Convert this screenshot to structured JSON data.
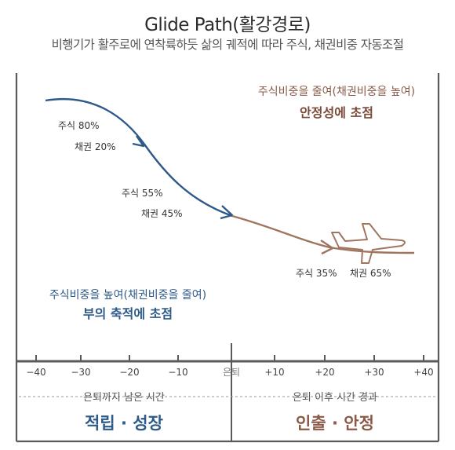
{
  "header": {
    "title": "Glide Path(활강경로)",
    "subtitle": "비행기가 활주로에 연착륙하듯 삶의 궤적에 따라 주식, 채권비중 자동조절"
  },
  "annotations": {
    "top_right_line1": "주식비중을 줄여(채권비중을 높여)",
    "top_right_line2": "안정성에 초점",
    "bottom_left_line1": "주식비중을 높여(채권비중을 줄여)",
    "bottom_left_line2": "부의 축적에 초점"
  },
  "points": {
    "p1_stock": "주식 80%",
    "p1_bond": "채권 20%",
    "p2_stock": "주식 55%",
    "p2_bond": "채권 45%",
    "p3_stock": "주식 35%",
    "p3_bond": "채권 65%"
  },
  "axis": {
    "ticks": [
      "−40",
      "−30",
      "−20",
      "−10",
      "은퇴",
      "+10",
      "+20",
      "+30",
      "+40"
    ]
  },
  "footer": {
    "left_caption": "은퇴까지 남은 시간",
    "left_title": "적립 · 성장",
    "right_caption": "은퇴 이후 시간 경과",
    "right_title": "인출 · 안정"
  },
  "colors": {
    "blue": "#2e5a8a",
    "brown": "#a07560",
    "blue_text": "#2e5a8a",
    "brown_text": "#8a5a48",
    "frame": "#5a5a5a"
  }
}
